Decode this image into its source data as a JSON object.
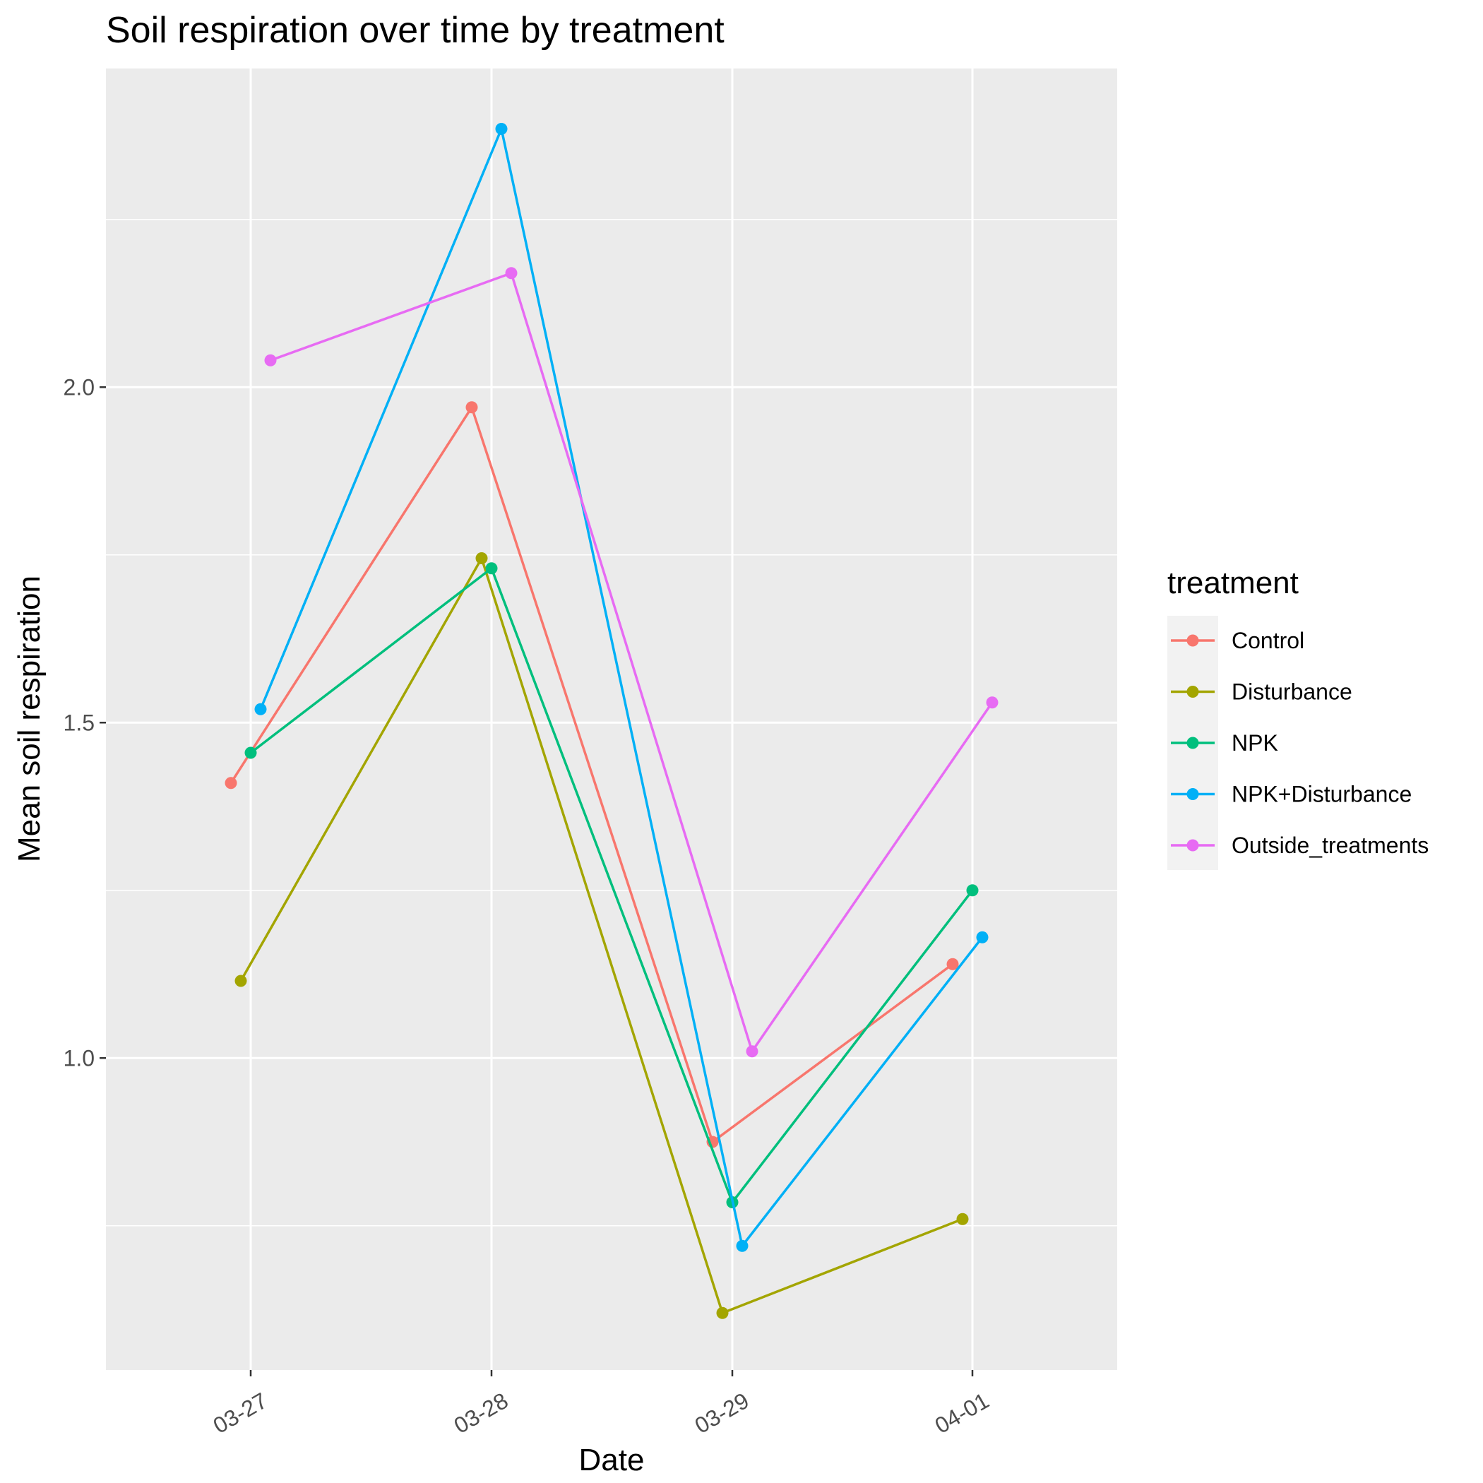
{
  "chart_data": {
    "type": "line",
    "title": "Soil respiration over time by treatment",
    "xlabel": "Date",
    "ylabel": "Mean soil respiration",
    "categories": [
      "03-27",
      "03-28",
      "03-29",
      "04-01"
    ],
    "y_ticks": [
      "1.0",
      "1.5",
      "2.0"
    ],
    "ylim": [
      0.535,
      2.475
    ],
    "grid": true,
    "legend": {
      "title": "treatment",
      "position": "right"
    },
    "series": [
      {
        "name": "Control",
        "color": "#F8766D",
        "values": [
          1.41,
          1.97,
          0.875,
          1.14
        ]
      },
      {
        "name": "Disturbance",
        "color": "#A3A500",
        "values": [
          1.115,
          1.745,
          0.62,
          0.76
        ]
      },
      {
        "name": "NPK",
        "color": "#00BF7D",
        "values": [
          1.455,
          1.73,
          0.785,
          1.25
        ]
      },
      {
        "name": "NPK+Disturbance",
        "color": "#00B0F6",
        "values": [
          1.52,
          2.385,
          0.72,
          1.18
        ]
      },
      {
        "name": "Outside_treatments",
        "color": "#E76BF3",
        "values": [
          2.04,
          2.17,
          1.01,
          1.53
        ]
      }
    ]
  }
}
